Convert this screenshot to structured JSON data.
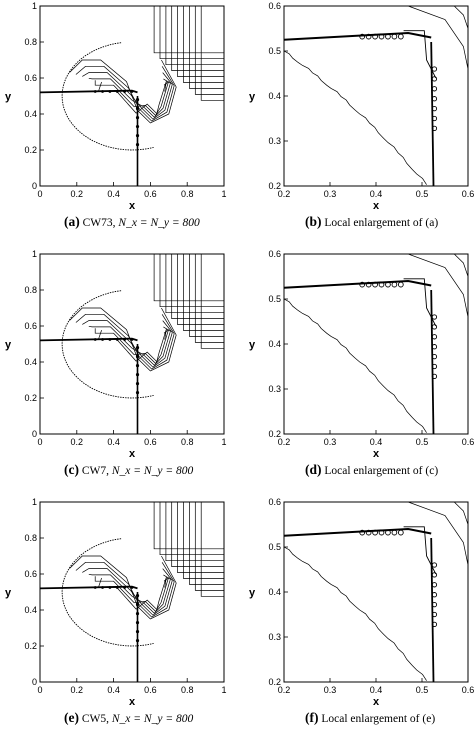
{
  "panels": [
    {
      "id": "a",
      "tag": "(a)",
      "caption": "CW73, N_x = N_y = 800",
      "plot": "full",
      "x_ticks": [
        "0",
        "0.2",
        "0.4",
        "0.6",
        "0.8",
        "1"
      ],
      "y_ticks": [
        "0",
        "0.2",
        "0.4",
        "0.6",
        "0.8",
        "1"
      ],
      "xlabel": "x",
      "ylabel": "y"
    },
    {
      "id": "b",
      "tag": "(b)",
      "caption": "Local enlargement of (a)",
      "plot": "zoom",
      "x_ticks": [
        "0.2",
        "0.3",
        "0.4",
        "0.5",
        "0.6"
      ],
      "y_ticks": [
        "0.2",
        "0.3",
        "0.4",
        "0.5",
        "0.6"
      ],
      "xlabel": "x",
      "ylabel": "y"
    },
    {
      "id": "c",
      "tag": "(c)",
      "caption": "CW7, N_x = N_y = 800",
      "plot": "full",
      "x_ticks": [
        "0",
        "0.2",
        "0.4",
        "0.6",
        "0.8",
        "1"
      ],
      "y_ticks": [
        "0",
        "0.2",
        "0.4",
        "0.6",
        "0.8",
        "1"
      ],
      "xlabel": "x",
      "ylabel": "y"
    },
    {
      "id": "d",
      "tag": "(d)",
      "caption": "Local enlargement of (c)",
      "plot": "zoom",
      "x_ticks": [
        "0.2",
        "0.3",
        "0.4",
        "0.5",
        "0.6"
      ],
      "y_ticks": [
        "0.2",
        "0.3",
        "0.4",
        "0.5",
        "0.6"
      ],
      "xlabel": "x",
      "ylabel": "y"
    },
    {
      "id": "e",
      "tag": "(e)",
      "caption": "CW5, N_x = N_y = 800",
      "plot": "full",
      "x_ticks": [
        "0",
        "0.2",
        "0.4",
        "0.6",
        "0.8",
        "1"
      ],
      "y_ticks": [
        "0",
        "0.2",
        "0.4",
        "0.6",
        "0.8",
        "1"
      ],
      "xlabel": "x",
      "ylabel": "y"
    },
    {
      "id": "f",
      "tag": "(f)",
      "caption": "Local enlargement of (e)",
      "plot": "zoom",
      "x_ticks": [
        "0.2",
        "0.3",
        "0.4",
        "0.5",
        "0.6"
      ],
      "y_ticks": [
        "0.2",
        "0.3",
        "0.4",
        "0.5",
        "0.6"
      ],
      "xlabel": "x",
      "ylabel": "y"
    }
  ],
  "captions": {
    "a": {
      "tag": "(a)",
      "text": "CW73,",
      "math": "N_x = N_y = 800"
    },
    "b": {
      "tag": "(b)",
      "text": "Local enlargement of (a)"
    },
    "c": {
      "tag": "(c)",
      "text": "CW7,",
      "math": "N_x = N_y = 800"
    },
    "d": {
      "tag": "(d)",
      "text": "Local enlargement of (c)"
    },
    "e": {
      "tag": "(e)",
      "text": "CW5,",
      "math": "N_x = N_y = 800"
    },
    "f": {
      "tag": "(f)",
      "text": "Local enlargement of (e)"
    }
  },
  "chart_data": [
    {
      "type": "contour",
      "panel": "a",
      "xlim": [
        0,
        1
      ],
      "ylim": [
        0,
        1
      ],
      "xlabel": "x",
      "ylabel": "y"
    },
    {
      "type": "contour",
      "panel": "b",
      "xlim": [
        0.2,
        0.6
      ],
      "ylim": [
        0.2,
        0.6
      ],
      "xlabel": "x",
      "ylabel": "y"
    },
    {
      "type": "contour",
      "panel": "c",
      "xlim": [
        0,
        1
      ],
      "ylim": [
        0,
        1
      ],
      "xlabel": "x",
      "ylabel": "y"
    },
    {
      "type": "contour",
      "panel": "d",
      "xlim": [
        0.2,
        0.6
      ],
      "ylim": [
        0.2,
        0.6
      ],
      "xlabel": "x",
      "ylabel": "y"
    },
    {
      "type": "contour",
      "panel": "e",
      "xlim": [
        0,
        1
      ],
      "ylim": [
        0,
        1
      ],
      "xlabel": "x",
      "ylabel": "y"
    },
    {
      "type": "contour",
      "panel": "f",
      "xlim": [
        0.2,
        0.6
      ],
      "ylim": [
        0.2,
        0.6
      ],
      "xlabel": "x",
      "ylabel": "y"
    }
  ]
}
